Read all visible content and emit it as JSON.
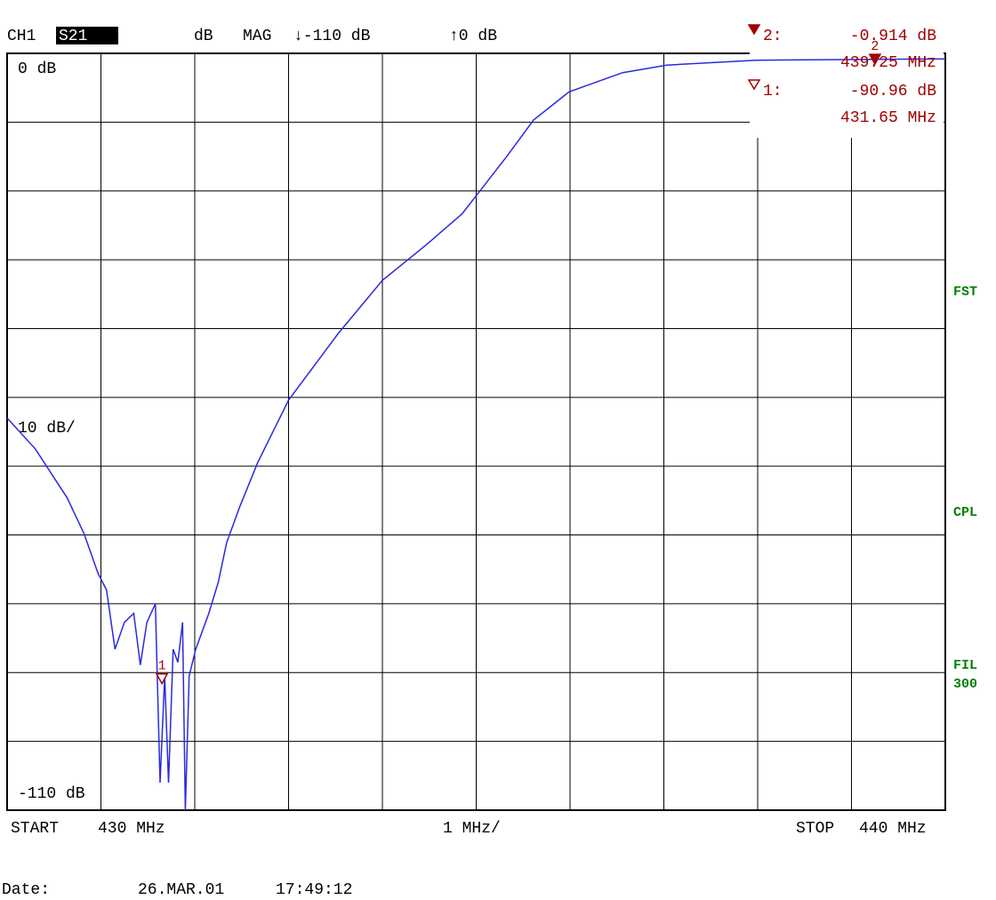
{
  "chart_data": {
    "type": "line",
    "header": {
      "channel": "CH1",
      "param": "S21",
      "unit": "dB",
      "format": "MAG",
      "bottom_ref": "↓-110 dB",
      "top_ref": "↑0 dB"
    },
    "x": [
      430.0,
      430.3,
      430.64,
      430.82,
      430.97,
      431.06,
      431.15,
      431.25,
      431.35,
      431.42,
      431.49,
      431.58,
      431.63,
      431.68,
      431.72,
      431.77,
      431.82,
      431.87,
      431.9,
      431.94,
      432.01,
      432.15,
      432.25,
      432.34,
      432.48,
      432.67,
      433.0,
      433.53,
      434.0,
      434.47,
      434.85,
      435.04,
      435.33,
      435.61,
      435.99,
      436.56,
      437.03,
      437.98,
      438.93,
      440.0
    ],
    "series": [
      {
        "name": "S21",
        "color": "#2a2adf",
        "values": [
          -53,
          -57.5,
          -64.6,
          -69.8,
          -75.6,
          -78,
          -86.6,
          -82.7,
          -81.4,
          -88.9,
          -82.7,
          -80,
          -106,
          -90.5,
          -106,
          -86.6,
          -88.5,
          -82.7,
          -110,
          -90.5,
          -86.6,
          -81.4,
          -76.9,
          -71.1,
          -65.9,
          -59.5,
          -50.4,
          -40.7,
          -33,
          -27.8,
          -23.3,
          -20,
          -14.9,
          -9.7,
          -5.6,
          -2.8,
          -1.7,
          -1.0,
          -0.9,
          -0.8
        ]
      }
    ],
    "xlim": [
      430,
      440
    ],
    "ylim": [
      -110,
      0
    ],
    "xticks": [
      430,
      431,
      432,
      433,
      434,
      435,
      436,
      437,
      438,
      439,
      440
    ],
    "yticks": [
      -110,
      -100,
      -90,
      -80,
      -70,
      -60,
      -50,
      -40,
      -30,
      -20,
      -10,
      0
    ],
    "ytick_labels": [
      {
        "value": 0,
        "label": "0 dB"
      },
      {
        "value": -110,
        "label": "-110 dB"
      }
    ],
    "y_scale_label": "10 dB/",
    "x_labels": {
      "start": "START",
      "start_freq": "430 MHz",
      "span": "1 MHz/",
      "stop": "STOP",
      "stop_freq": "440 MHz"
    },
    "grid": true,
    "markers": [
      {
        "id": "2",
        "label": "2:",
        "value": -0.914,
        "value_label": "-0.914 dB",
        "freq": 439.25,
        "freq_label": "439.25 MHz",
        "filled": true
      },
      {
        "id": "1",
        "label": "1:",
        "value": -90.96,
        "value_label": "-90.96 dB",
        "freq": 431.65,
        "freq_label": "431.65 MHz",
        "filled": false
      }
    ],
    "marker_color": "#a00000",
    "side_labels": [
      "FST",
      "CPL",
      "FIL",
      "300"
    ],
    "footer": {
      "label": "Date:",
      "date": "26.MAR.01",
      "time": "17:49:12"
    }
  }
}
